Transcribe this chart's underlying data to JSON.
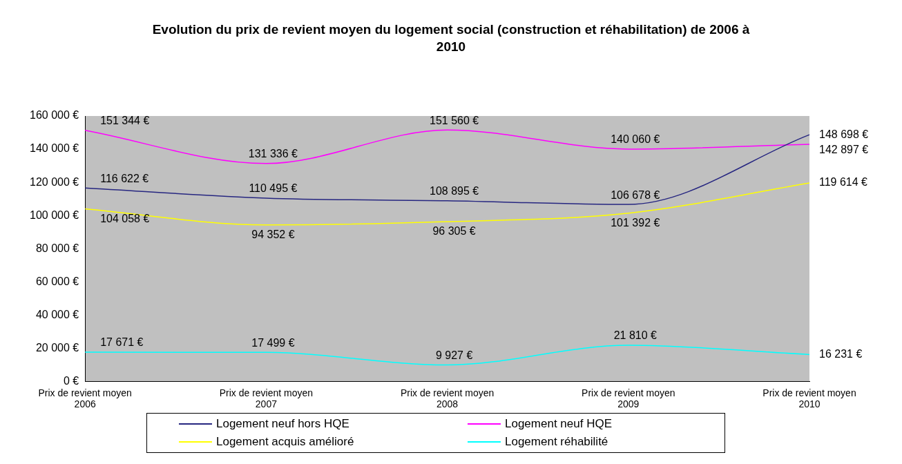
{
  "chart_data": {
    "type": "line",
    "title": "Evolution du prix de revient moyen du logement social (construction et réhabilitation) de 2006 à 2010",
    "categories": [
      "Prix de revient moyen\n2006",
      "Prix de revient moyen\n2007",
      "Prix de revient moyen\n2008",
      "Prix de revient moyen\n2009",
      "Prix de revient moyen\n2010"
    ],
    "series": [
      {
        "name": "Logement neuf hors HQE",
        "color": "#262680",
        "values": [
          116622,
          110495,
          108895,
          106678,
          148698
        ],
        "value_labels": [
          "116 622 €",
          "110 495 €",
          "108 895 €",
          "106 678 €",
          "148 698 €"
        ]
      },
      {
        "name": "Logement neuf HQE",
        "color": "#ff00ff",
        "values": [
          151344,
          131336,
          151560,
          140060,
          142897
        ],
        "value_labels": [
          "151 344 €",
          "131 336 €",
          "151 560 €",
          "140 060 €",
          "142 897 €"
        ]
      },
      {
        "name": "Logement acquis amélioré",
        "color": "#ffff00",
        "values": [
          104058,
          94352,
          96305,
          101392,
          119614
        ],
        "value_labels": [
          "104 058 €",
          "94 352 €",
          "96 305 €",
          "101 392 €",
          "119 614 €"
        ]
      },
      {
        "name": "Logement réhabilité",
        "color": "#00ffff",
        "values": [
          17671,
          17499,
          9927,
          21810,
          16231
        ],
        "value_labels": [
          "17 671 €",
          "17 499 €",
          "9 927 €",
          "21 810 €",
          "16 231 €"
        ]
      }
    ],
    "ylim": [
      0,
      160000
    ],
    "yticks": [
      {
        "value": 0,
        "label": "0 €"
      },
      {
        "value": 20000,
        "label": "20 000 €"
      },
      {
        "value": 40000,
        "label": "40 000 €"
      },
      {
        "value": 60000,
        "label": "60 000 €"
      },
      {
        "value": 80000,
        "label": "80 000 €"
      },
      {
        "value": 100000,
        "label": "100 000 €"
      },
      {
        "value": 120000,
        "label": "120 000 €"
      },
      {
        "value": 140000,
        "label": "140 000 €"
      },
      {
        "value": 160000,
        "label": "160 000 €"
      }
    ],
    "grid": false,
    "legend": "bottom",
    "marker": "none",
    "line_style": "solid"
  }
}
